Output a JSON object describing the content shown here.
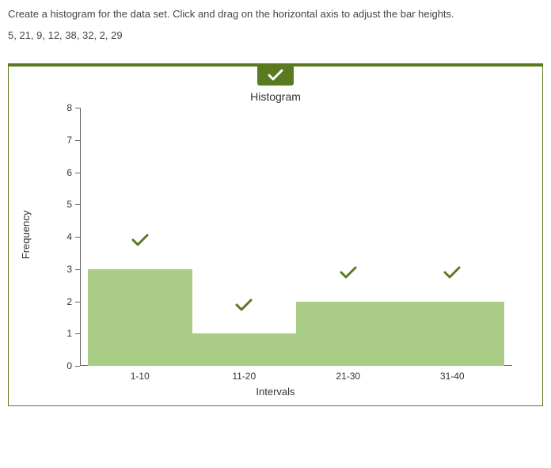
{
  "instruction": "Create a histogram for the data set. Click and drag on the horizontal axis to adjust the bar heights.",
  "data_values_text": "5, 21, 9, 12, 38, 32, 2, 29",
  "panel": {
    "border_color": "#5a7a1f",
    "top_border_width": 4,
    "badge_bg": "#5a7a1f",
    "badge_check_color": "#ffffff"
  },
  "chart": {
    "type": "histogram",
    "title": "Histogram",
    "title_fontsize": 14,
    "xlabel": "Intervals",
    "ylabel": "Frequency",
    "label_fontsize": 13,
    "tick_fontsize": 12,
    "ylim": [
      0,
      8
    ],
    "ytick_step": 1,
    "bar_color": "#a9cc86",
    "axis_color": "#666666",
    "background_color": "#ffffff",
    "check_color": "#5a7a1f",
    "bars": [
      {
        "label": "1-10",
        "value": 3
      },
      {
        "label": "11-20",
        "value": 1
      },
      {
        "label": "21-30",
        "value": 2
      },
      {
        "label": "31-40",
        "value": 2
      }
    ]
  }
}
